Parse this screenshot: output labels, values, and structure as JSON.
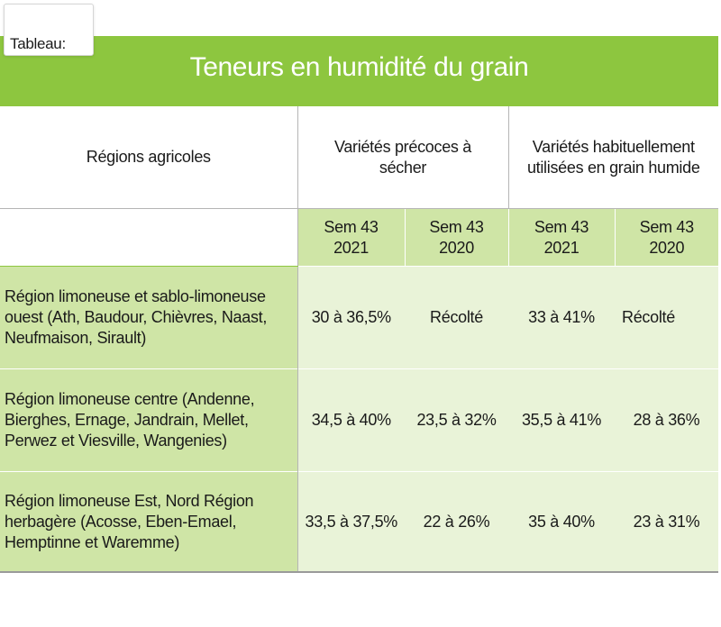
{
  "tag_label": "Tableau:",
  "title": "Teneurs en humidité du grain",
  "headers": {
    "regions": "Régions agricoles",
    "early_varieties": "Variétés précoces à sécher",
    "usual_varieties": "Variétés habituellement utilisées en grain humide"
  },
  "sub_headers": [
    "Sem 43 2021",
    "Sem 43 2020",
    "Sem 43 2021",
    "Sem 43 2020"
  ],
  "rows": [
    {
      "region": "Région limoneuse et sablo-limoneuse ouest (Ath, Baudour, Chièvres, Naast, Neufmaison, Sirault)",
      "values": [
        "30 à 36,5%",
        "Récolté",
        "33 à 41%",
        "Récolté"
      ]
    },
    {
      "region": "Région limoneuse centre (Andenne, Bierghes, Ernage, Jandrain, Mellet, Perwez et Viesville, Wangenies)",
      "values": [
        "34,5 à 40%",
        "23,5 à 32%",
        "35,5 à 41%",
        "28 à 36%"
      ]
    },
    {
      "region": "Région limoneuse Est, Nord Région herbagère (Acosse, Eben-Emael, Hemptinne et Waremme)",
      "values": [
        "33,5 à 37,5%",
        "22 à 26%",
        "35 à 40%",
        "23 à 31%"
      ]
    }
  ],
  "colors": {
    "banner": "#8dc63f",
    "region_cell": "#cfe5a6",
    "value_cell": "#e9f3d8",
    "title_text": "#ffffff"
  }
}
